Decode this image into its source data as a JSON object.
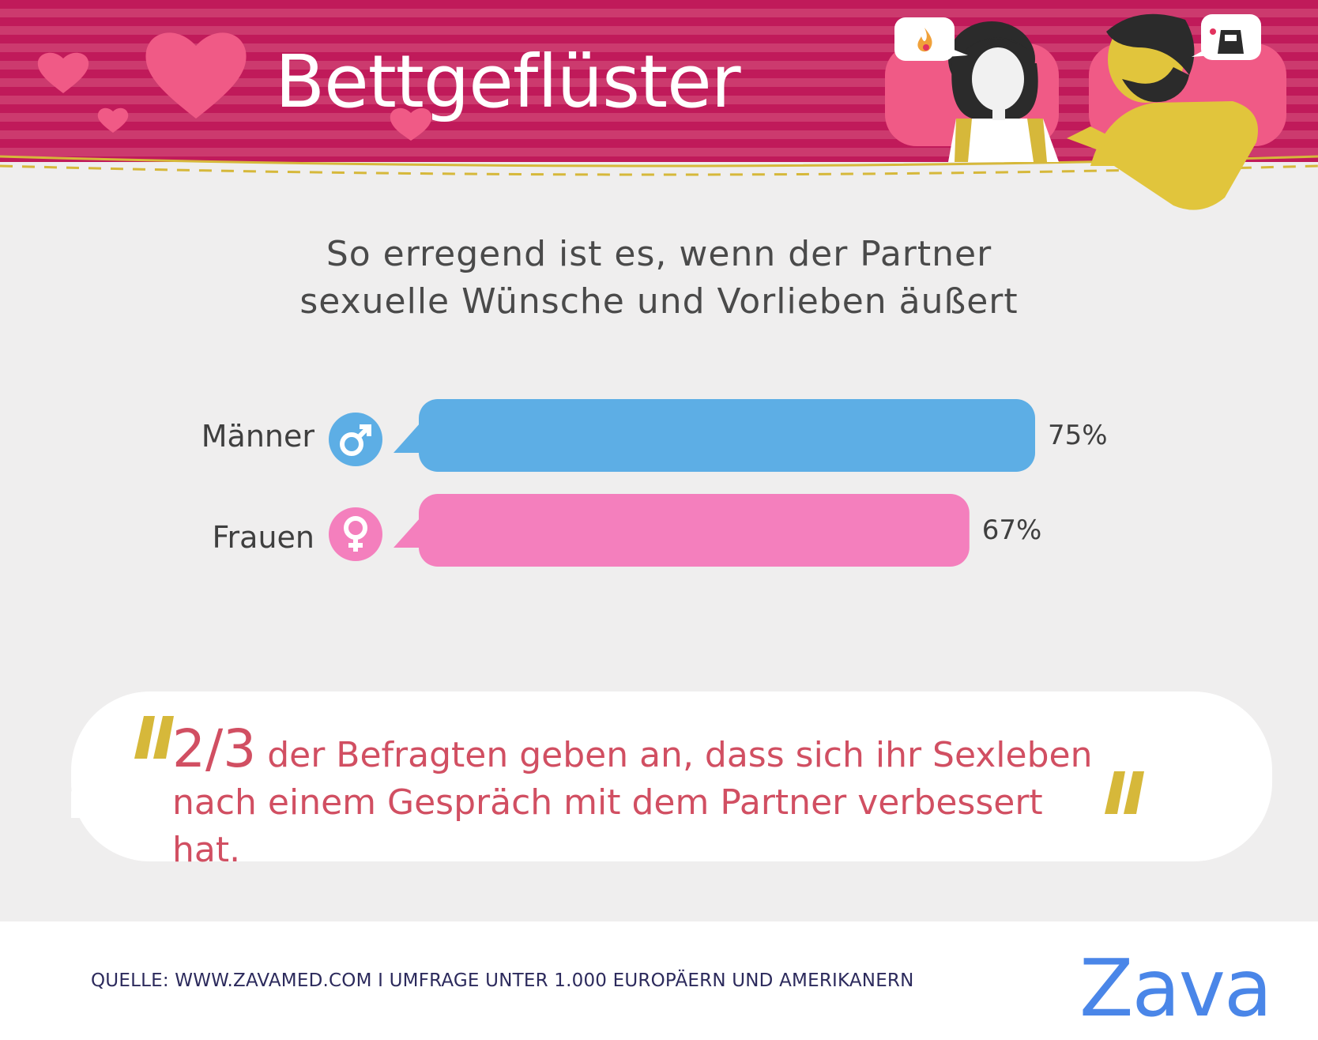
{
  "header": {
    "title": "Bettgeflüster"
  },
  "subtitle_lines": [
    "So erregend ist es, wenn der Partner",
    "sexuelle Wünsche und Vorlieben äußert"
  ],
  "chart_data": {
    "type": "bar",
    "orientation": "horizontal",
    "title": "So erregend ist es, wenn der Partner sexuelle Wünsche und Vorlieben äußert",
    "categories": [
      "Männer",
      "Frauen"
    ],
    "values": [
      75,
      67
    ],
    "value_labels": [
      "75%",
      "67%"
    ],
    "unit": "%",
    "xlim": [
      0,
      100
    ],
    "colors": [
      "#5daee5",
      "#f47fbd"
    ],
    "grid": false,
    "legend": "none"
  },
  "quote": {
    "highlight": "2/3",
    "line1": "der Befragten geben an, dass sich ihr Sexleben",
    "line2": "nach einem Gespräch mit dem Partner verbessert hat.",
    "accent_color": "#d6b83a"
  },
  "footer": {
    "source": "QUELLE: WWW.ZAVAMED.COM I UMFRAGE UNTER 1.000 EUROPÄERN UND AMERIKANERN",
    "logo": "Zava"
  },
  "icons": [
    "male-symbol-icon",
    "female-symbol-icon",
    "heart-icon",
    "flame-icon",
    "apron-icon"
  ]
}
